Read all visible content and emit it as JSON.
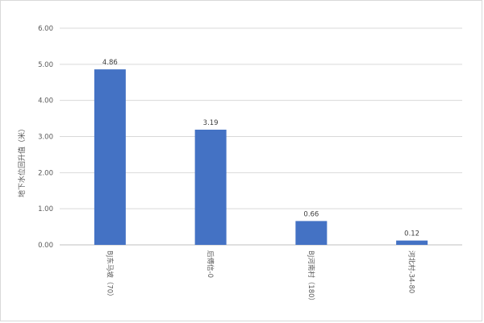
{
  "chart_data": {
    "type": "bar",
    "title": "",
    "xlabel": "",
    "ylabel": "地下水位回升值（米）",
    "categories": [
      "BJ东马坡（70）",
      "后傅信-0",
      "BJ河南村（180）",
      "河北村-34-80"
    ],
    "values": [
      4.86,
      3.19,
      0.66,
      0.12
    ],
    "data_labels": [
      "4.86",
      "3.19",
      "0.66",
      "0.12"
    ],
    "ylim": [
      0,
      6
    ],
    "yticks": [
      "0.00",
      "1.00",
      "2.00",
      "3.00",
      "4.00",
      "5.00",
      "6.00"
    ],
    "grid": true,
    "legend": "none",
    "bar_color": "#4472c4"
  }
}
